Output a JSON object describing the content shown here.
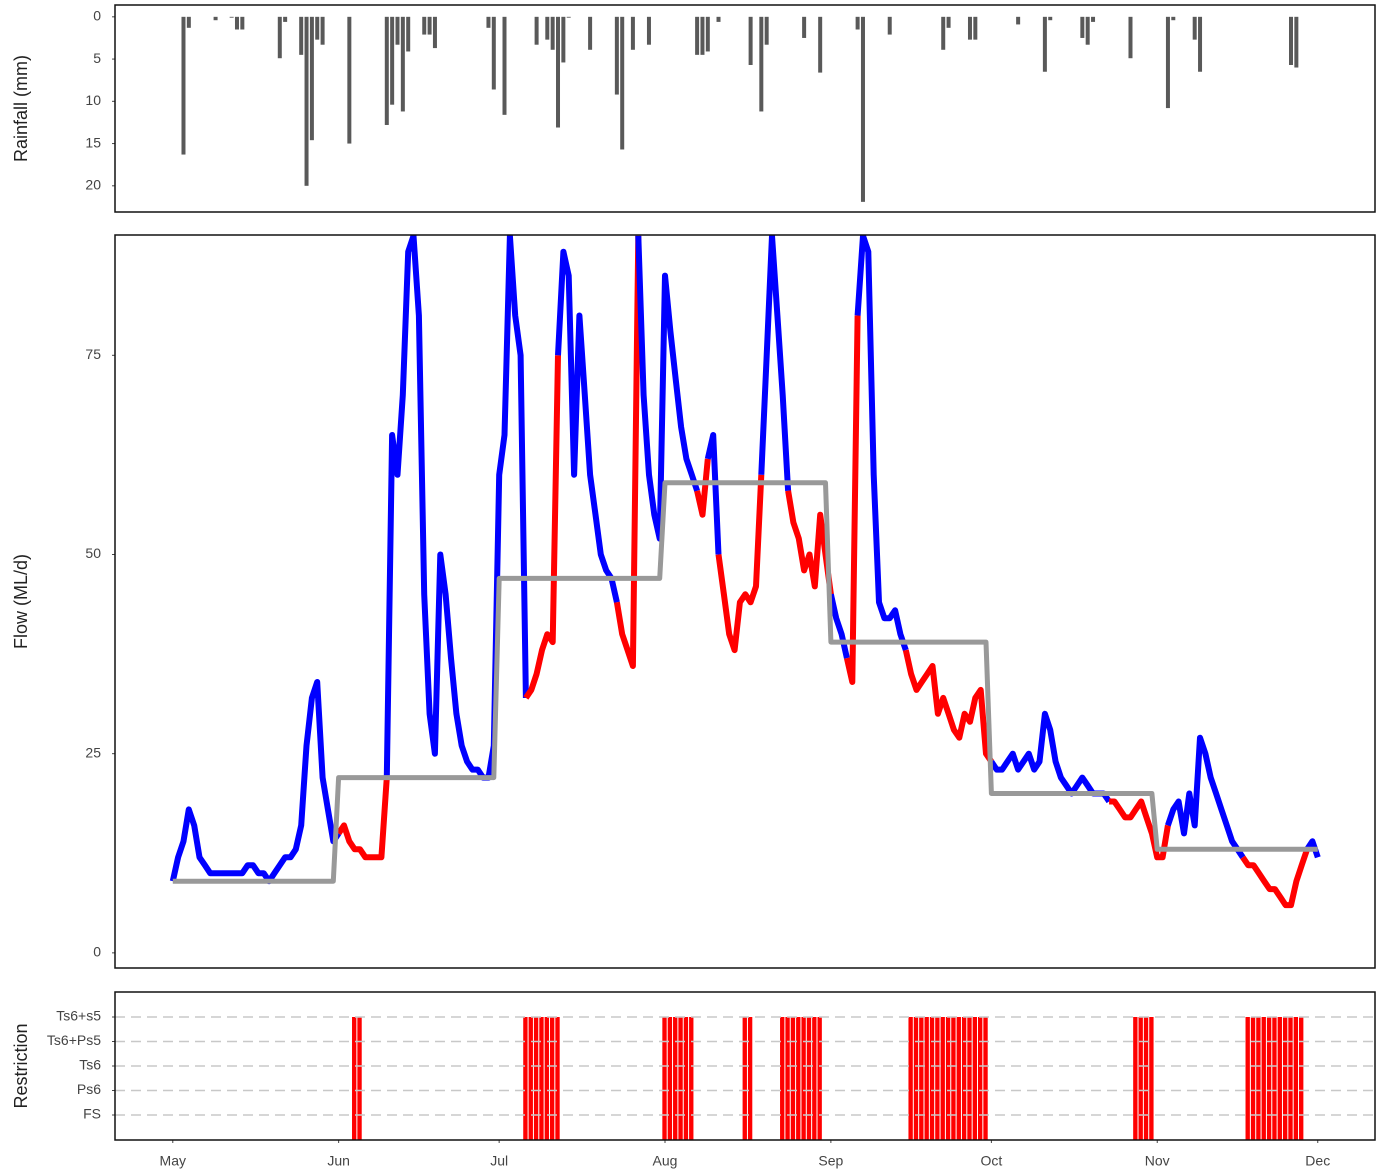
{
  "chart_data": [
    {
      "type": "bar",
      "ylabel": "Rainfall (mm)",
      "color": "#595959",
      "xlim": [
        -10.8,
        224.7
      ],
      "ylim": [
        23.1,
        -1.4
      ],
      "yticks": [
        0,
        5,
        10,
        15,
        20
      ],
      "x": [
        2,
        3,
        8,
        11,
        12,
        13,
        20,
        21,
        24,
        25,
        26,
        27,
        28,
        33,
        40,
        41,
        42,
        43,
        44,
        47,
        48,
        49,
        59,
        60,
        62,
        68,
        70,
        71,
        72,
        73,
        74,
        78,
        83,
        84,
        86,
        89,
        98,
        99,
        100,
        102,
        108,
        110,
        111,
        118,
        121,
        128,
        129,
        134,
        144,
        145,
        149,
        150,
        158,
        163,
        164,
        170,
        171,
        172,
        179,
        186,
        187,
        191,
        192,
        209,
        210
      ],
      "values": [
        16.3,
        1.3,
        0.4,
        0.1,
        1.5,
        1.5,
        4.9,
        0.6,
        4.5,
        20,
        14.6,
        2.7,
        3.3,
        15,
        12.8,
        10.4,
        3.3,
        11.2,
        4.1,
        2.1,
        2.1,
        3.7,
        1.3,
        8.6,
        11.6,
        3.3,
        2.7,
        3.9,
        13.1,
        5.4,
        0.1,
        3.9,
        9.2,
        15.7,
        3.9,
        3.3,
        4.5,
        4.5,
        4.1,
        0.6,
        5.7,
        11.2,
        3.3,
        2.5,
        6.6,
        1.5,
        21.9,
        2.1,
        3.9,
        1.3,
        2.7,
        2.7,
        0.9,
        6.5,
        0.4,
        2.5,
        3.3,
        0.6,
        4.9,
        10.8,
        0.4,
        2.7,
        6.5,
        5.7,
        6
      ]
    },
    {
      "type": "line",
      "ylabel": "Flow (ML/d)",
      "xlim": [
        -10.8,
        224.7
      ],
      "ylim": [
        -1.9,
        90.1
      ],
      "yticks": [
        0,
        25,
        50,
        75
      ],
      "color_above": "#0000ff",
      "color_below": "#ff0000",
      "x": [
        0,
        1,
        2,
        3,
        4,
        5,
        6,
        7,
        8,
        9,
        10,
        11,
        12,
        13,
        14,
        15,
        16,
        17,
        18,
        19,
        20,
        21,
        22,
        23,
        24,
        25,
        26,
        27,
        28,
        29,
        30,
        31,
        32,
        33,
        34,
        35,
        36,
        37,
        38,
        39,
        40,
        41,
        42,
        43,
        44,
        45,
        46,
        47,
        48,
        49,
        50,
        51,
        52,
        53,
        54,
        55,
        56,
        57,
        58,
        59,
        60,
        61,
        62,
        63,
        64,
        65,
        66,
        67,
        68,
        69,
        70,
        71,
        72,
        73,
        74,
        75,
        76,
        77,
        78,
        79,
        80,
        81,
        82,
        83,
        84,
        85,
        86,
        87,
        88,
        89,
        90,
        91,
        92,
        93,
        94,
        95,
        96,
        97,
        98,
        99,
        100,
        101,
        102,
        103,
        104,
        105,
        106,
        107,
        108,
        109,
        110,
        111,
        112,
        113,
        114,
        115,
        116,
        117,
        118,
        119,
        120,
        121,
        122,
        123,
        124,
        125,
        126,
        127,
        128,
        129,
        130,
        131,
        132,
        133,
        134,
        135,
        136,
        137,
        138,
        139,
        140,
        141,
        142,
        143,
        144,
        145,
        146,
        147,
        148,
        149,
        150,
        151,
        152,
        153,
        154,
        155,
        156,
        157,
        158,
        159,
        160,
        161,
        162,
        163,
        164,
        165,
        166,
        167,
        168,
        169,
        170,
        171,
        172,
        173,
        174,
        175,
        176,
        177,
        178,
        179,
        180,
        181,
        182,
        183,
        184,
        185,
        186,
        187,
        188,
        189,
        190,
        191,
        192,
        193,
        194,
        195,
        196,
        197,
        198,
        199,
        200,
        201,
        202,
        203,
        204,
        205,
        206,
        207,
        208,
        209,
        210,
        211,
        212,
        213,
        214
      ],
      "values": [
        9,
        12,
        14,
        18,
        16,
        12,
        11,
        10,
        10,
        10,
        10,
        10,
        10,
        10,
        11,
        11,
        10,
        10,
        9,
        10,
        11,
        12,
        12,
        13,
        16,
        26,
        32,
        34,
        22,
        18,
        14,
        15,
        16,
        14,
        13,
        13,
        12,
        12,
        12,
        12,
        22,
        65,
        60,
        70,
        88,
        90,
        80,
        45,
        30,
        25,
        50,
        45,
        37,
        30,
        26,
        24,
        23,
        23,
        22,
        22,
        26,
        60,
        65,
        90,
        80,
        75,
        32,
        33,
        35,
        38,
        40,
        39,
        75,
        88,
        85,
        60,
        80,
        70,
        60,
        55,
        50,
        48,
        47,
        44,
        40,
        38,
        36,
        90,
        70,
        60,
        55,
        52,
        85,
        78,
        72,
        66,
        62,
        60,
        58,
        55,
        62,
        65,
        50,
        45,
        40,
        38,
        44,
        45,
        44,
        46,
        60,
        75,
        90,
        80,
        70,
        58,
        54,
        52,
        48,
        50,
        46,
        55,
        50,
        45,
        42,
        40,
        37,
        34,
        80,
        90,
        88,
        60,
        44,
        42,
        42,
        43,
        40,
        38,
        35,
        33,
        34,
        35,
        36,
        30,
        32,
        30,
        28,
        27,
        30,
        29,
        32,
        33,
        25,
        24,
        23,
        23,
        24,
        25,
        23,
        24,
        25,
        23,
        24,
        30,
        28,
        24,
        22,
        21,
        20,
        21,
        22,
        21,
        20,
        20,
        20,
        19,
        19,
        18,
        17,
        17,
        18,
        19,
        17,
        15,
        12,
        12,
        16,
        18,
        19,
        15,
        20,
        16,
        27,
        25,
        22,
        20,
        18,
        16,
        14,
        13,
        12,
        11,
        11,
        10,
        9,
        8,
        8,
        7,
        6,
        6,
        9,
        11,
        13,
        14,
        12
      ],
      "threshold": {
        "color": "#999999",
        "x": [
          0,
          30,
          31,
          60,
          61,
          91,
          92,
          122,
          123,
          152,
          153,
          183,
          184,
          214
        ],
        "values": [
          9,
          9,
          22,
          22,
          47,
          47,
          59,
          59,
          39,
          39,
          20,
          20,
          13,
          13
        ]
      }
    },
    {
      "type": "timeline",
      "ylabel": "Restriction",
      "color": "#ff0000",
      "grid": true,
      "xlim": [
        -10.8,
        224.7
      ],
      "xticks": [
        {
          "value": 0,
          "label": "May"
        },
        {
          "value": 31,
          "label": "Jun"
        },
        {
          "value": 61,
          "label": "Jul"
        },
        {
          "value": 92,
          "label": "Aug"
        },
        {
          "value": 123,
          "label": "Sep"
        },
        {
          "value": 153,
          "label": "Oct"
        },
        {
          "value": 184,
          "label": "Nov"
        },
        {
          "value": 214,
          "label": "Dec"
        }
      ],
      "categories": [
        "FS",
        "Ps6",
        "Ts6",
        "Ts6+Ps5",
        "Ts6+s5"
      ],
      "x": [
        34,
        35,
        66,
        67,
        68,
        69,
        70,
        71,
        72,
        92,
        93,
        94,
        95,
        96,
        97,
        107,
        108,
        114,
        115,
        116,
        117,
        118,
        119,
        120,
        121,
        138,
        139,
        140,
        141,
        142,
        143,
        144,
        145,
        146,
        147,
        148,
        149,
        150,
        151,
        152,
        180,
        181,
        182,
        183,
        201,
        202,
        203,
        204,
        205,
        206,
        207,
        208,
        209,
        210,
        211
      ],
      "values": [
        "Ts6+s5",
        "Ts6+s5",
        "Ts6+s5",
        "Ts6+s5",
        "Ts6+s5",
        "Ts6+s5",
        "Ts6+s5",
        "Ts6+s5",
        "Ts6+s5",
        "Ts6+s5",
        "Ts6+s5",
        "Ts6+s5",
        "Ts6+s5",
        "Ts6+s5",
        "Ts6+s5",
        "Ts6+s5",
        "Ts6+s5",
        "Ts6+s5",
        "Ts6+s5",
        "Ts6+s5",
        "Ts6+s5",
        "Ts6+s5",
        "Ts6+s5",
        "Ts6+s5",
        "Ts6+s5",
        "Ts6+s5",
        "Ts6+s5",
        "Ts6+s5",
        "Ts6+s5",
        "Ts6+s5",
        "Ts6+s5",
        "Ts6+s5",
        "Ts6+s5",
        "Ts6+s5",
        "Ts6+s5",
        "Ts6+s5",
        "Ts6+s5",
        "Ts6+s5",
        "Ts6+s5",
        "Ts6+s5",
        "Ts6+s5",
        "Ts6+s5",
        "Ts6+s5",
        "Ts6+s5",
        "Ts6+s5",
        "Ts6+s5",
        "Ts6+s5",
        "Ts6+s5",
        "Ts6+s5",
        "Ts6+s5",
        "Ts6+s5",
        "Ts6+s5",
        "Ts6+s5",
        "Ts6+s5",
        "Ts6+s5"
      ]
    }
  ]
}
